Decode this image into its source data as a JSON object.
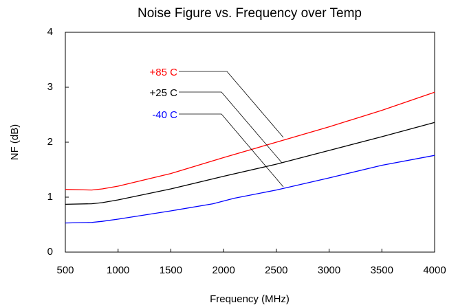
{
  "chart_data": {
    "type": "line",
    "title": "Noise Figure vs. Frequency over Temp",
    "x_label": "Frequency (MHz)",
    "y_label": "NF (dB)",
    "xlim": [
      500,
      4000
    ],
    "xticks": [
      500,
      1000,
      1500,
      2000,
      2500,
      3000,
      3500,
      4000
    ],
    "ylim": [
      0,
      4
    ],
    "yticks": [
      0,
      1,
      2,
      3,
      4
    ],
    "grid": false,
    "series": [
      {
        "name": "+85 C",
        "color": "#ff0000",
        "x": [
          500,
          750,
          850,
          1000,
          1500,
          2000,
          2500,
          3000,
          3500,
          4000
        ],
        "values": [
          1.14,
          1.13,
          1.15,
          1.2,
          1.43,
          1.72,
          2.0,
          2.28,
          2.58,
          2.91
        ]
      },
      {
        "name": "+25 C",
        "color": "#000000",
        "x": [
          500,
          750,
          850,
          1000,
          1500,
          2000,
          2500,
          3000,
          3500,
          4000
        ],
        "values": [
          0.87,
          0.88,
          0.9,
          0.95,
          1.15,
          1.38,
          1.6,
          1.85,
          2.1,
          2.36
        ]
      },
      {
        "name": "-40 C",
        "color": "#0000ff",
        "x": [
          500,
          750,
          850,
          1000,
          1500,
          1900,
          2100,
          2500,
          3000,
          3500,
          4000
        ],
        "values": [
          0.53,
          0.54,
          0.56,
          0.6,
          0.75,
          0.88,
          0.98,
          1.13,
          1.35,
          1.58,
          1.76
        ]
      }
    ]
  }
}
